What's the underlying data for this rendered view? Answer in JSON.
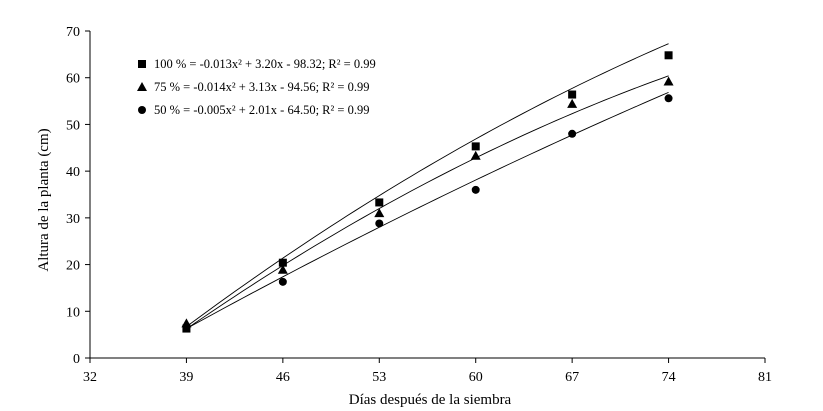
{
  "chart_data": {
    "type": "scatter",
    "title": "",
    "xlabel": "Días después de la siembra",
    "ylabel": "Altura de la planta (cm)",
    "xlim": [
      32,
      81
    ],
    "ylim": [
      0,
      70
    ],
    "xticks": [
      32,
      39,
      46,
      53,
      60,
      67,
      74,
      81
    ],
    "yticks": [
      0,
      10,
      20,
      30,
      40,
      50,
      60,
      70
    ],
    "grid": false,
    "legend_position": "top-left",
    "x": [
      39,
      46,
      53,
      60,
      67,
      74
    ],
    "series": [
      {
        "key": "s100",
        "marker": "square",
        "values": [
          6.3,
          20.4,
          33.3,
          45.3,
          56.4,
          64.8
        ],
        "legend": "100 % = -0.013x² + 3.20x - 98.32; R² = 0.99",
        "fit": [
          -0.013,
          3.2,
          -98.32
        ]
      },
      {
        "key": "s75",
        "marker": "triangle",
        "values": [
          7.4,
          18.9,
          31.0,
          43.3,
          54.4,
          59.2
        ],
        "legend": "75 % = -0.014x² + 3.13x - 94.56; R² = 0.99",
        "fit": [
          -0.014,
          3.13,
          -94.56
        ]
      },
      {
        "key": "s50",
        "marker": "circle",
        "values": [
          6.7,
          16.3,
          28.8,
          36.0,
          48.0,
          55.6
        ],
        "legend": "50 % = -0.005x² + 2.01x - 64.50; R² = 0.99",
        "fit": [
          -0.005,
          2.01,
          -64.5
        ]
      }
    ]
  }
}
